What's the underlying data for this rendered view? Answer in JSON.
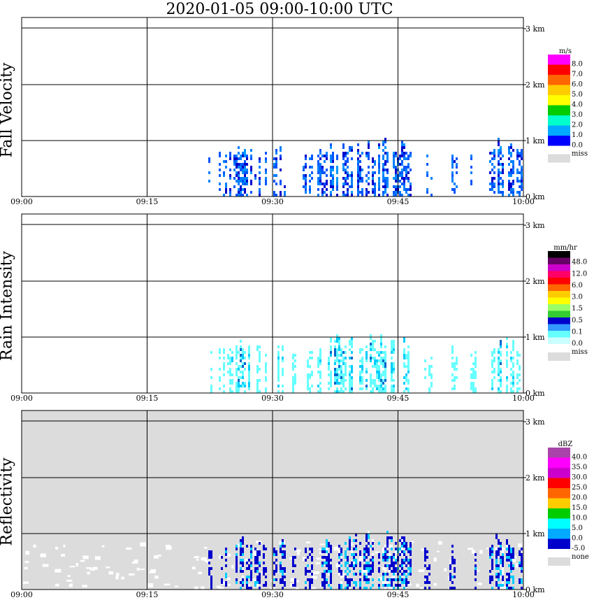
{
  "title": "2020-01-05   09:00-10:00 UTC",
  "panels": [
    {
      "label": "Fall Velocity",
      "unit": "m/s",
      "legend": [
        "8.0",
        "7.0",
        "6.0",
        "5.0",
        "4.0",
        "3.0",
        "2.0",
        "1.0",
        "0.0"
      ],
      "legend_colors": [
        "#ff00ff",
        "#ff0000",
        "#ff6600",
        "#ffcc00",
        "#ffff00",
        "#00cc00",
        "#00ffcc",
        "#00aaff",
        "#0000ff"
      ],
      "miss_label": "miss"
    },
    {
      "label": "Rain Intensity",
      "unit": "mm/hr",
      "legend": [
        "48.0",
        "12.0",
        "6.0",
        "3.0",
        "1.5",
        "0.5",
        "0.1",
        "0.0"
      ],
      "legend_colors": [
        "#000000",
        "#660066",
        "#cc00cc",
        "#ff0066",
        "#ff0000",
        "#ff6600",
        "#ffcc00",
        "#ffff00",
        "#99ff66",
        "#33cc33",
        "#0000cc",
        "#3399ff",
        "#66ffff",
        "#ccffff"
      ],
      "miss_label": "miss"
    },
    {
      "label": "Reflectivity",
      "unit": "dBZ",
      "legend": [
        "40.0",
        "35.0",
        "30.0",
        "25.0",
        "20.0",
        "15.0",
        "10.0",
        "5.0",
        "0.0",
        "-5.0"
      ],
      "legend_colors": [
        "#aa44aa",
        "#ff00ff",
        "#cc00cc",
        "#ff0000",
        "#ff6600",
        "#ffcc00",
        "#00cc00",
        "#00ffff",
        "#00aaff",
        "#0000cc"
      ],
      "miss_label": "none"
    }
  ],
  "chart_data": [
    {
      "type": "heatmap",
      "title": "Fall Velocity",
      "x_ticks": [
        "09:00",
        "09:15",
        "09:30",
        "09:45",
        "10:00"
      ],
      "y_ticks": [
        "0 km",
        "1 km",
        "2 km",
        "3 km"
      ],
      "ylim": [
        0,
        3.1
      ],
      "xlim": [
        "09:00",
        "10:00"
      ],
      "colorbar_unit": "m/s",
      "colorbar_values": [
        0.0,
        1.0,
        2.0,
        3.0,
        4.0,
        5.0,
        6.0,
        7.0,
        8.0
      ],
      "missing_label": "miss",
      "echo_top_km": 1.0
    },
    {
      "type": "heatmap",
      "title": "Rain Intensity",
      "x_ticks": [
        "09:00",
        "09:15",
        "09:30",
        "09:45",
        "10:00"
      ],
      "y_ticks": [
        "0 km",
        "1 km",
        "2 km",
        "3 km"
      ],
      "ylim": [
        0,
        3.1
      ],
      "xlim": [
        "09:00",
        "10:00"
      ],
      "colorbar_unit": "mm/hr",
      "colorbar_values": [
        0.0,
        0.1,
        0.5,
        1.5,
        3.0,
        6.0,
        12.0,
        48.0
      ],
      "missing_label": "miss",
      "echo_top_km": 1.0
    },
    {
      "type": "heatmap",
      "title": "Reflectivity",
      "x_ticks": [
        "09:00",
        "09:15",
        "09:30",
        "09:45",
        "10:00"
      ],
      "y_ticks": [
        "0 km",
        "1 km",
        "2 km",
        "3 km"
      ],
      "ylim": [
        0,
        3.1
      ],
      "xlim": [
        "09:00",
        "10:00"
      ],
      "colorbar_unit": "dBZ",
      "colorbar_values": [
        -5.0,
        0.0,
        5.0,
        10.0,
        15.0,
        20.0,
        25.0,
        30.0,
        35.0,
        40.0
      ],
      "missing_label": "none",
      "echo_top_km": 1.0
    }
  ]
}
